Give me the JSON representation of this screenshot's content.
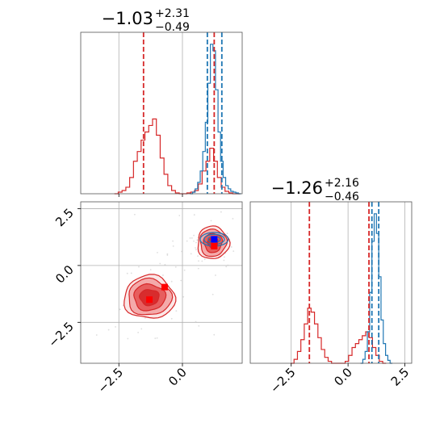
{
  "chart_data": {
    "type": "corner",
    "colors": {
      "red": "#d62728",
      "blue": "#1f77b4",
      "contour_fills": [
        "#fbe3e3",
        "#f3a3a3",
        "#e65555",
        "#d62728"
      ],
      "scatter": "#c8c8c8",
      "marker_blue": "#0000ff",
      "marker_red": "#ff0000",
      "grid": "#b0b0b0"
    },
    "grid": true,
    "panels": [
      {
        "id": "hist-param-1",
        "type": "step-histogram",
        "title": {
          "median": "−1.03",
          "upper": "+2.31",
          "lower": "−0.49"
        },
        "xlim": [
          -4.0,
          2.35
        ],
        "xticks": [
          -2.5,
          0.0
        ],
        "series": [
          {
            "color": "#d62728",
            "bins": [
              [
                -2.6,
                0
              ],
              [
                -2.45,
                1
              ],
              [
                -2.3,
                2
              ],
              [
                -2.15,
                4
              ],
              [
                -2.0,
                10
              ],
              [
                -1.85,
                20
              ],
              [
                -1.7,
                26
              ],
              [
                -1.55,
                33
              ],
              [
                -1.4,
                38
              ],
              [
                -1.25,
                42
              ],
              [
                -1.1,
                46
              ],
              [
                -0.95,
                36
              ],
              [
                -0.8,
                22
              ],
              [
                -0.65,
                12
              ],
              [
                -0.5,
                5
              ],
              [
                -0.35,
                2
              ],
              [
                -0.2,
                0.5
              ],
              [
                -0.05,
                0
              ],
              [
                0.1,
                0
              ],
              [
                0.25,
                0.5
              ],
              [
                0.4,
                1
              ],
              [
                0.55,
                2
              ],
              [
                0.7,
                6
              ],
              [
                0.85,
                14
              ],
              [
                1.0,
                20
              ],
              [
                1.15,
                28
              ],
              [
                1.3,
                20
              ],
              [
                1.45,
                10
              ],
              [
                1.6,
                4
              ],
              [
                1.75,
                1.5
              ],
              [
                1.9,
                0.5
              ],
              [
                2.05,
                0
              ],
              [
                2.2,
                0
              ]
            ]
          },
          {
            "color": "#1f77b4",
            "bins": [
              [
                0.35,
                0
              ],
              [
                0.45,
                1
              ],
              [
                0.55,
                3
              ],
              [
                0.65,
                7
              ],
              [
                0.75,
                14
              ],
              [
                0.85,
                26
              ],
              [
                0.95,
                44
              ],
              [
                1.05,
                68
              ],
              [
                1.15,
                92
              ],
              [
                1.25,
                88
              ],
              [
                1.35,
                64
              ],
              [
                1.45,
                38
              ],
              [
                1.55,
                20
              ],
              [
                1.65,
                10
              ],
              [
                1.75,
                5
              ],
              [
                1.85,
                3
              ],
              [
                1.95,
                1.5
              ],
              [
                2.05,
                1
              ],
              [
                2.15,
                0.5
              ],
              [
                2.25,
                0
              ]
            ]
          }
        ],
        "vlines": [
          {
            "x": -1.53,
            "color": "#d62728"
          },
          {
            "x": 0.98,
            "color": "#1f77b4"
          },
          {
            "x": 1.25,
            "color": "#d62728"
          },
          {
            "x": 1.55,
            "color": "#1f77b4"
          }
        ]
      },
      {
        "id": "scatter-2d",
        "type": "contour-scatter",
        "xlim": [
          -4.0,
          2.35
        ],
        "ylim": [
          -4.3,
          2.8
        ],
        "xticks": [
          -2.5,
          0.0
        ],
        "yticks": [
          2.5,
          0.0,
          -2.5
        ],
        "blobs": [
          {
            "center": [
              -1.3,
              -1.4
            ],
            "radii": [
              [
                1.0,
                0.95
              ],
              [
                0.85,
                0.8
              ],
              [
                0.62,
                0.58
              ],
              [
                0.38,
                0.35
              ]
            ]
          },
          {
            "center": [
              1.2,
              1.0
            ],
            "radii": [
              [
                0.62,
                0.72
              ],
              [
                0.52,
                0.6
              ],
              [
                0.36,
                0.42
              ],
              [
                0.2,
                0.24
              ]
            ]
          }
        ],
        "blue_contours": {
          "center": [
            1.25,
            1.15
          ],
          "radii": [
            [
              0.55,
              0.3
            ],
            [
              0.4,
              0.22
            ],
            [
              0.24,
              0.13
            ]
          ]
        },
        "markers": [
          {
            "x": 1.25,
            "y": 1.15,
            "color": "#0000ff"
          },
          {
            "x": 1.25,
            "y": 0.85,
            "color": "#ff0000"
          },
          {
            "x": -0.7,
            "y": -0.95,
            "color": "#ff0000"
          },
          {
            "x": -1.3,
            "y": -1.5,
            "color": "#ff0000"
          }
        ]
      },
      {
        "id": "hist-param-2",
        "type": "step-histogram",
        "title": {
          "median": "−1.26",
          "upper": "+2.16",
          "lower": "−0.46"
        },
        "xlim": [
          -4.3,
          2.8
        ],
        "xticks": [
          -2.5,
          0.0,
          2.5
        ],
        "series": [
          {
            "color": "#d62728",
            "bins": [
              [
                -2.45,
                0
              ],
              [
                -2.3,
                2
              ],
              [
                -2.15,
                6
              ],
              [
                -2.0,
                12
              ],
              [
                -1.85,
                20
              ],
              [
                -1.7,
                28
              ],
              [
                -1.55,
                26
              ],
              [
                -1.4,
                20
              ],
              [
                -1.25,
                13
              ],
              [
                -1.1,
                7
              ],
              [
                -0.95,
                3
              ],
              [
                -0.8,
                1
              ],
              [
                -0.65,
                0
              ],
              [
                -0.2,
                0
              ],
              [
                -0.05,
                1
              ],
              [
                0.1,
                4
              ],
              [
                0.25,
                8
              ],
              [
                0.4,
                10
              ],
              [
                0.55,
                12
              ],
              [
                0.7,
                14
              ],
              [
                0.85,
                16
              ],
              [
                1.0,
                13
              ],
              [
                1.15,
                8
              ],
              [
                1.3,
                4
              ],
              [
                1.45,
                1
              ],
              [
                1.6,
                0
              ]
            ]
          },
          {
            "color": "#1f77b4",
            "bins": [
              [
                0.6,
                0
              ],
              [
                0.7,
                2
              ],
              [
                0.8,
                6
              ],
              [
                0.9,
                16
              ],
              [
                1.0,
                36
              ],
              [
                1.1,
                62
              ],
              [
                1.2,
                76
              ],
              [
                1.3,
                66
              ],
              [
                1.4,
                44
              ],
              [
                1.5,
                22
              ],
              [
                1.6,
                10
              ],
              [
                1.7,
                4
              ],
              [
                1.8,
                1.5
              ],
              [
                1.9,
                0
              ]
            ]
          }
        ],
        "vlines": [
          {
            "x": -1.7,
            "color": "#d62728"
          },
          {
            "x": 0.92,
            "color": "#d62728"
          },
          {
            "x": 1.05,
            "color": "#1f77b4"
          },
          {
            "x": 1.35,
            "color": "#1f77b4"
          }
        ]
      }
    ]
  }
}
